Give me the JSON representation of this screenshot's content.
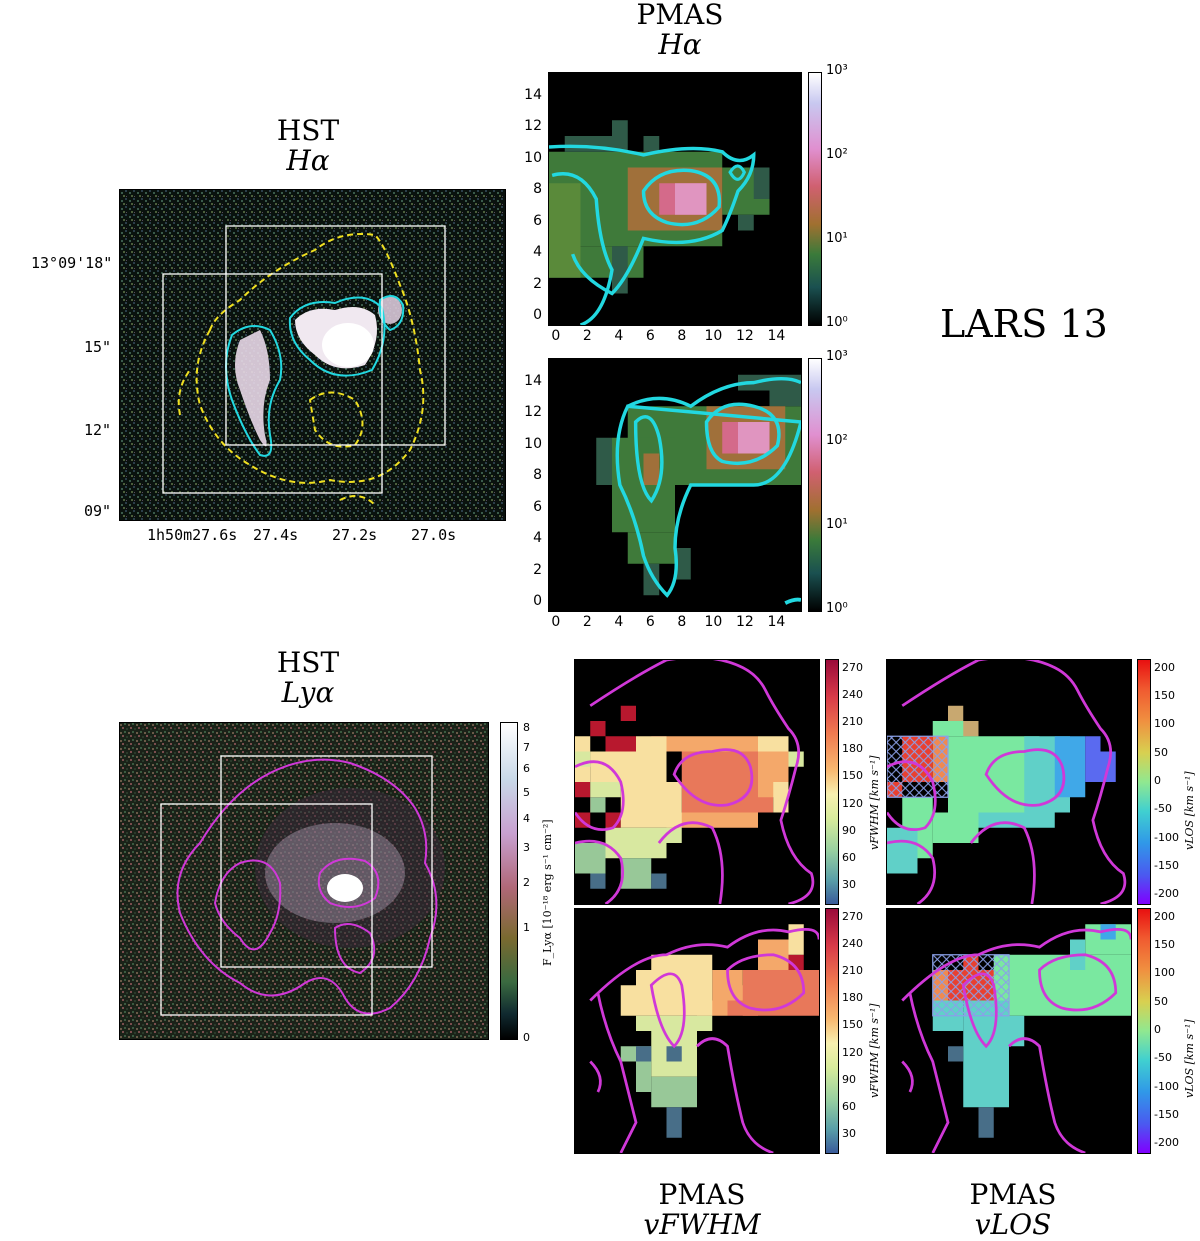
{
  "object_label": "LARS 13",
  "hst_ha": {
    "title_1": "HST",
    "title_2": "Hα",
    "dec_ticks": [
      "13°09'18\"",
      "15\"",
      "12\"",
      "09\""
    ],
    "ra_ticks": [
      "1h50m27.6s",
      "27.4s",
      "27.2s",
      "27.0s"
    ]
  },
  "pmas_ha": {
    "title_1": "PMAS",
    "title_2": "Hα",
    "x_ticks": [
      "0",
      "2",
      "4",
      "6",
      "8",
      "10",
      "12",
      "14"
    ],
    "y_ticks": [
      "14",
      "12",
      "10",
      "8",
      "6",
      "4",
      "2",
      "0"
    ],
    "cbar_ticks": [
      "10³",
      "10²",
      "10¹",
      "10⁰"
    ]
  },
  "hst_lya": {
    "title_1": "HST",
    "title_2": "Lyα",
    "cbar_ticks": [
      "8",
      "7",
      "6",
      "5",
      "4",
      "3",
      "2",
      "1",
      "0"
    ],
    "cbar_unit": "F_Lyα [10⁻¹⁸ erg s⁻¹ cm⁻²]"
  },
  "pmas_fwhm": {
    "title_1": "PMAS",
    "title_2": "vFWHM",
    "cbar_ticks": [
      "270",
      "240",
      "210",
      "180",
      "150",
      "120",
      "90",
      "60",
      "30"
    ],
    "cbar_unit": "vFWHM [km s⁻¹]"
  },
  "pmas_los": {
    "title_1": "PMAS",
    "title_2": "vLOS",
    "cbar_ticks": [
      "200",
      "150",
      "100",
      "50",
      "0",
      "-50",
      "-100",
      "-150",
      "-200"
    ],
    "cbar_unit": "vLOS [km s⁻¹]"
  }
}
